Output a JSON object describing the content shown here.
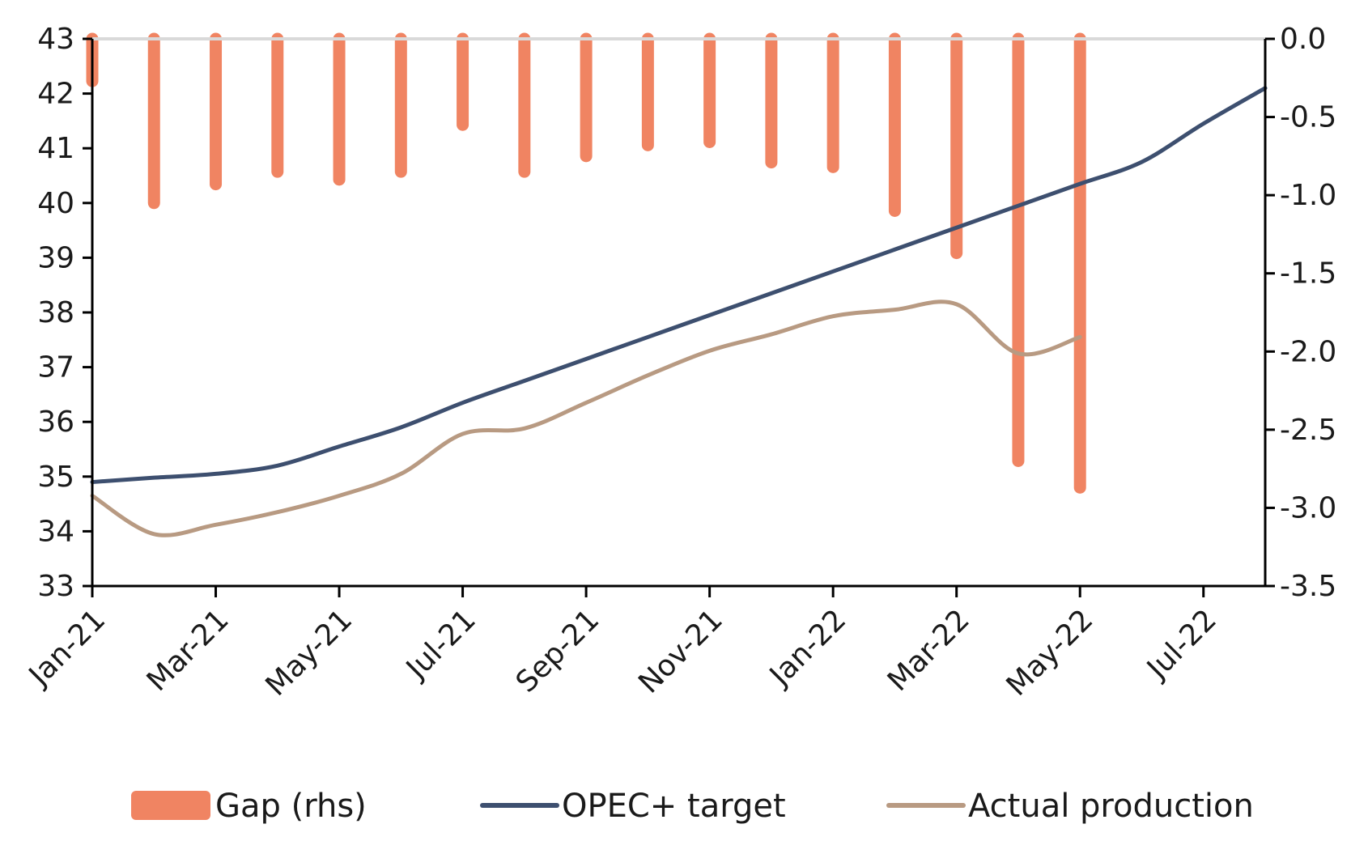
{
  "chart_data": {
    "type": "bar+line",
    "title": "",
    "xlabel": "",
    "ylabel": "",
    "x_ticks": [
      "Jan-21",
      "Mar-21",
      "May-21",
      "Jul-21",
      "Sep-21",
      "Nov-21",
      "Jan-22",
      "Mar-22",
      "May-22",
      "Jul-22"
    ],
    "x_range": [
      "Jan-21",
      "Aug-22"
    ],
    "ylim_left": [
      33,
      43
    ],
    "yticks_left": [
      "33",
      "34",
      "35",
      "36",
      "37",
      "38",
      "39",
      "40",
      "41",
      "42",
      "43"
    ],
    "ylim_right": [
      -3.5,
      0.0
    ],
    "yticks_right": [
      "0.0",
      "-0.5",
      "-1.0",
      "-1.5",
      "-2.0",
      "-2.5",
      "-3.0",
      "-3.5"
    ],
    "grid": false,
    "legend_position": "bottom",
    "series": [
      {
        "name": "Gap (rhs)",
        "type": "bar",
        "axis": "right",
        "color": "#f08462",
        "x": [
          "Jan-21",
          "Feb-21",
          "Mar-21",
          "Apr-21",
          "May-21",
          "Jun-21",
          "Jul-21",
          "Aug-21",
          "Sep-21",
          "Oct-21",
          "Nov-21",
          "Dec-21",
          "Jan-22",
          "Feb-22",
          "Mar-22",
          "Apr-22",
          "May-22"
        ],
        "values": [
          -0.27,
          -1.05,
          -0.93,
          -0.85,
          -0.9,
          -0.85,
          -0.55,
          -0.85,
          -0.75,
          -0.68,
          -0.66,
          -0.79,
          -0.82,
          -1.1,
          -1.37,
          -2.7,
          -2.87
        ]
      },
      {
        "name": "OPEC+ target",
        "type": "line",
        "axis": "left",
        "color": "#3d4f6f",
        "x": [
          "Jan-21",
          "Feb-21",
          "Mar-21",
          "Apr-21",
          "May-21",
          "Jun-21",
          "Jul-21",
          "Aug-21",
          "Sep-21",
          "Oct-21",
          "Nov-21",
          "Dec-21",
          "Jan-22",
          "Feb-22",
          "Mar-22",
          "Apr-22",
          "May-22",
          "Jun-22",
          "Jul-22",
          "Aug-22"
        ],
        "values": [
          34.9,
          34.98,
          35.05,
          35.2,
          35.55,
          35.9,
          36.35,
          36.75,
          37.15,
          37.55,
          37.95,
          38.35,
          38.75,
          39.15,
          39.55,
          39.95,
          40.35,
          40.75,
          41.45,
          42.1
        ]
      },
      {
        "name": "Actual production",
        "type": "line",
        "axis": "left",
        "color": "#b89a82",
        "x": [
          "Jan-21",
          "Feb-21",
          "Mar-21",
          "Apr-21",
          "May-21",
          "Jun-21",
          "Jul-21",
          "Aug-21",
          "Sep-21",
          "Oct-21",
          "Nov-21",
          "Dec-21",
          "Jan-22",
          "Feb-22",
          "Mar-22",
          "Apr-22",
          "May-22"
        ],
        "values": [
          34.65,
          33.95,
          34.12,
          34.35,
          34.65,
          35.05,
          35.78,
          35.88,
          36.35,
          36.85,
          37.3,
          37.6,
          37.93,
          38.05,
          38.15,
          37.25,
          37.55
        ]
      }
    ]
  }
}
